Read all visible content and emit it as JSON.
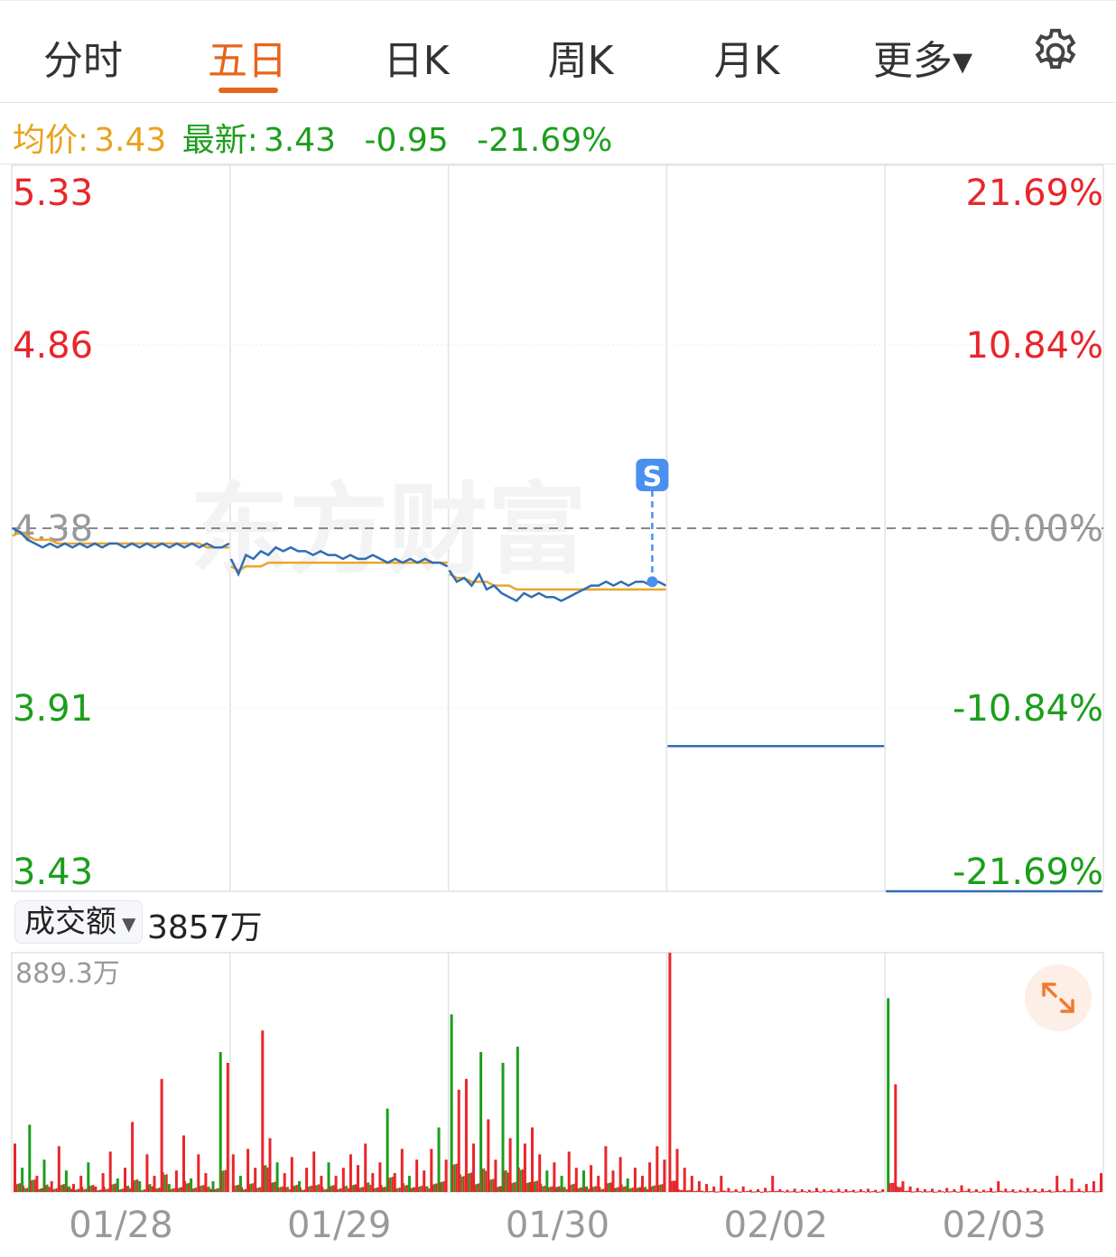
{
  "tabs": [
    {
      "label": "分时"
    },
    {
      "label": "五日",
      "active": true
    },
    {
      "label": "日K"
    },
    {
      "label": "周K"
    },
    {
      "label": "月K"
    },
    {
      "label": "更多▾"
    }
  ],
  "settings_icon": "gear-icon",
  "info": {
    "avg_label": "均价:",
    "avg_value": "3.43",
    "latest_label": "最新:",
    "latest_value": "3.43",
    "change": "-0.95",
    "change_pct": "-21.69%"
  },
  "watermark": "东方财富",
  "marker_label": "S",
  "volume_panel": {
    "selector_label": "成交额",
    "total": "3857万",
    "max_label": "889.3万",
    "expand_icon": "expand-arrows-icon"
  },
  "colors": {
    "up": "#e8262a",
    "down": "#1c9e1c",
    "price_line": "#2f6db5",
    "avg_line": "#eca52b",
    "accent": "#e8641b",
    "marker": "#4a90f0"
  },
  "chart_data": {
    "type": "line",
    "categories": [
      "01/28",
      "01/29",
      "01/30",
      "02/02",
      "02/03"
    ],
    "ylim": [
      3.43,
      5.33
    ],
    "y_ticks_left": [
      "5.33",
      "4.86",
      "4.38",
      "3.91",
      "3.43"
    ],
    "y_tick_values": [
      5.33,
      4.86,
      4.38,
      3.91,
      3.43
    ],
    "y_ticks_right": [
      "21.69%",
      "10.84%",
      "0.00%",
      "-10.84%",
      "-21.69%"
    ],
    "prev_close": 4.38,
    "price": [
      [
        4.38,
        4.37,
        4.35,
        4.34,
        4.33,
        4.34,
        4.33,
        4.34,
        4.33,
        4.34,
        4.33,
        4.34,
        4.33,
        4.34,
        4.34,
        4.33,
        4.34,
        4.33,
        4.34,
        4.33,
        4.34,
        4.33,
        4.34,
        4.33,
        4.34,
        4.33,
        4.34,
        4.33,
        4.33,
        4.34
      ],
      [
        4.3,
        4.26,
        4.31,
        4.3,
        4.32,
        4.31,
        4.33,
        4.32,
        4.33,
        4.32,
        4.32,
        4.31,
        4.32,
        4.31,
        4.31,
        4.3,
        4.31,
        4.3,
        4.3,
        4.31,
        4.3,
        4.29,
        4.3,
        4.29,
        4.3,
        4.29,
        4.3,
        4.29,
        4.29,
        4.28
      ],
      [
        4.27,
        4.24,
        4.25,
        4.23,
        4.26,
        4.22,
        4.23,
        4.21,
        4.2,
        4.19,
        4.21,
        4.2,
        4.21,
        4.2,
        4.2,
        4.19,
        4.2,
        4.21,
        4.22,
        4.23,
        4.23,
        4.24,
        4.23,
        4.24,
        4.23,
        4.24,
        4.24,
        4.23,
        4.24,
        4.23
      ],
      [
        3.81,
        3.81
      ],
      [
        3.43,
        3.43
      ]
    ],
    "avg_price": [
      [
        4.36,
        4.37,
        4.36,
        4.35,
        4.35,
        4.35,
        4.34,
        4.34,
        4.34,
        4.34,
        4.34,
        4.34,
        4.34,
        4.34,
        4.34,
        4.34,
        4.34,
        4.34,
        4.34,
        4.34,
        4.34,
        4.34,
        4.34,
        4.34,
        4.34,
        4.34,
        4.33,
        4.33,
        4.33,
        4.33
      ],
      [
        4.28,
        4.27,
        4.28,
        4.28,
        4.28,
        4.29,
        4.29,
        4.29,
        4.29,
        4.29,
        4.29,
        4.29,
        4.29,
        4.29,
        4.29,
        4.29,
        4.29,
        4.29,
        4.29,
        4.29,
        4.29,
        4.29,
        4.29,
        4.29,
        4.29,
        4.29,
        4.29,
        4.29,
        4.29,
        4.29
      ],
      [
        4.26,
        4.25,
        4.25,
        4.24,
        4.24,
        4.24,
        4.23,
        4.23,
        4.23,
        4.22,
        4.22,
        4.22,
        4.22,
        4.22,
        4.22,
        4.22,
        4.22,
        4.22,
        4.22,
        4.22,
        4.22,
        4.22,
        4.22,
        4.22,
        4.22,
        4.22,
        4.22,
        4.22,
        4.22,
        4.22
      ],
      [],
      []
    ],
    "volume_max": 889.3,
    "volume": [
      [
        [
          180,
          "r"
        ],
        [
          90,
          "g"
        ],
        [
          250,
          "g"
        ],
        [
          60,
          "r"
        ],
        [
          120,
          "g"
        ],
        [
          40,
          "r"
        ],
        [
          170,
          "r"
        ],
        [
          80,
          "g"
        ],
        [
          30,
          "r"
        ],
        [
          60,
          "r"
        ],
        [
          110,
          "g"
        ],
        [
          20,
          "r"
        ],
        [
          70,
          "r"
        ],
        [
          150,
          "r"
        ],
        [
          50,
          "g"
        ],
        [
          90,
          "r"
        ],
        [
          260,
          "r"
        ],
        [
          40,
          "g"
        ],
        [
          140,
          "r"
        ],
        [
          60,
          "r"
        ],
        [
          420,
          "r"
        ],
        [
          30,
          "g"
        ],
        [
          80,
          "r"
        ],
        [
          210,
          "r"
        ],
        [
          50,
          "g"
        ],
        [
          140,
          "r"
        ],
        [
          70,
          "r"
        ],
        [
          40,
          "g"
        ],
        [
          520,
          "g"
        ],
        [
          480,
          "r"
        ]
      ],
      [
        [
          140,
          "r"
        ],
        [
          60,
          "g"
        ],
        [
          160,
          "r"
        ],
        [
          90,
          "r"
        ],
        [
          600,
          "r"
        ],
        [
          200,
          "r"
        ],
        [
          110,
          "g"
        ],
        [
          70,
          "r"
        ],
        [
          130,
          "r"
        ],
        [
          40,
          "g"
        ],
        [
          90,
          "r"
        ],
        [
          150,
          "r"
        ],
        [
          60,
          "r"
        ],
        [
          110,
          "g"
        ],
        [
          60,
          "r"
        ],
        [
          90,
          "r"
        ],
        [
          140,
          "r"
        ],
        [
          100,
          "r"
        ],
        [
          180,
          "r"
        ],
        [
          70,
          "r"
        ],
        [
          110,
          "r"
        ],
        [
          310,
          "g"
        ],
        [
          70,
          "r"
        ],
        [
          160,
          "r"
        ],
        [
          60,
          "g"
        ],
        [
          120,
          "r"
        ],
        [
          80,
          "r"
        ],
        [
          160,
          "r"
        ],
        [
          240,
          "g"
        ],
        [
          120,
          "r"
        ]
      ],
      [
        [
          660,
          "g"
        ],
        [
          380,
          "r"
        ],
        [
          420,
          "r"
        ],
        [
          180,
          "r"
        ],
        [
          520,
          "g"
        ],
        [
          270,
          "r"
        ],
        [
          120,
          "r"
        ],
        [
          480,
          "g"
        ],
        [
          200,
          "r"
        ],
        [
          540,
          "g"
        ],
        [
          180,
          "r"
        ],
        [
          240,
          "r"
        ],
        [
          140,
          "r"
        ],
        [
          80,
          "g"
        ],
        [
          110,
          "r"
        ],
        [
          60,
          "g"
        ],
        [
          150,
          "r"
        ],
        [
          90,
          "r"
        ],
        [
          80,
          "g"
        ],
        [
          100,
          "r"
        ],
        [
          60,
          "r"
        ],
        [
          170,
          "r"
        ],
        [
          80,
          "r"
        ],
        [
          130,
          "r"
        ],
        [
          50,
          "g"
        ],
        [
          90,
          "r"
        ],
        [
          60,
          "r"
        ],
        [
          110,
          "r"
        ],
        [
          170,
          "r"
        ],
        [
          120,
          "r"
        ]
      ],
      [
        [
          889,
          "r"
        ],
        [
          160,
          "r"
        ],
        [
          90,
          "r"
        ],
        [
          60,
          "r"
        ],
        [
          40,
          "r"
        ],
        [
          30,
          "r"
        ],
        [
          20,
          "r"
        ],
        [
          60,
          "r"
        ],
        [
          15,
          "r"
        ],
        [
          10,
          "r"
        ],
        [
          20,
          "r"
        ],
        [
          8,
          "r"
        ],
        [
          10,
          "r"
        ],
        [
          15,
          "r"
        ],
        [
          60,
          "r"
        ],
        [
          10,
          "r"
        ],
        [
          8,
          "r"
        ],
        [
          12,
          "r"
        ],
        [
          10,
          "r"
        ],
        [
          8,
          "r"
        ],
        [
          15,
          "r"
        ],
        [
          10,
          "r"
        ],
        [
          8,
          "r"
        ],
        [
          12,
          "r"
        ],
        [
          10,
          "r"
        ],
        [
          8,
          "r"
        ],
        [
          10,
          "r"
        ],
        [
          12,
          "r"
        ],
        [
          8,
          "r"
        ],
        [
          10,
          "r"
        ]
      ],
      [
        [
          720,
          "g"
        ],
        [
          400,
          "r"
        ],
        [
          40,
          "r"
        ],
        [
          20,
          "r"
        ],
        [
          15,
          "r"
        ],
        [
          10,
          "r"
        ],
        [
          12,
          "r"
        ],
        [
          8,
          "r"
        ],
        [
          15,
          "r"
        ],
        [
          10,
          "r"
        ],
        [
          25,
          "r"
        ],
        [
          12,
          "r"
        ],
        [
          10,
          "r"
        ],
        [
          8,
          "r"
        ],
        [
          15,
          "r"
        ],
        [
          40,
          "r"
        ],
        [
          12,
          "r"
        ],
        [
          10,
          "r"
        ],
        [
          8,
          "r"
        ],
        [
          15,
          "r"
        ],
        [
          10,
          "r"
        ],
        [
          12,
          "r"
        ],
        [
          8,
          "r"
        ],
        [
          60,
          "r"
        ],
        [
          10,
          "r"
        ],
        [
          50,
          "r"
        ],
        [
          12,
          "r"
        ],
        [
          30,
          "r"
        ],
        [
          40,
          "r"
        ],
        [
          70,
          "r"
        ]
      ]
    ]
  }
}
